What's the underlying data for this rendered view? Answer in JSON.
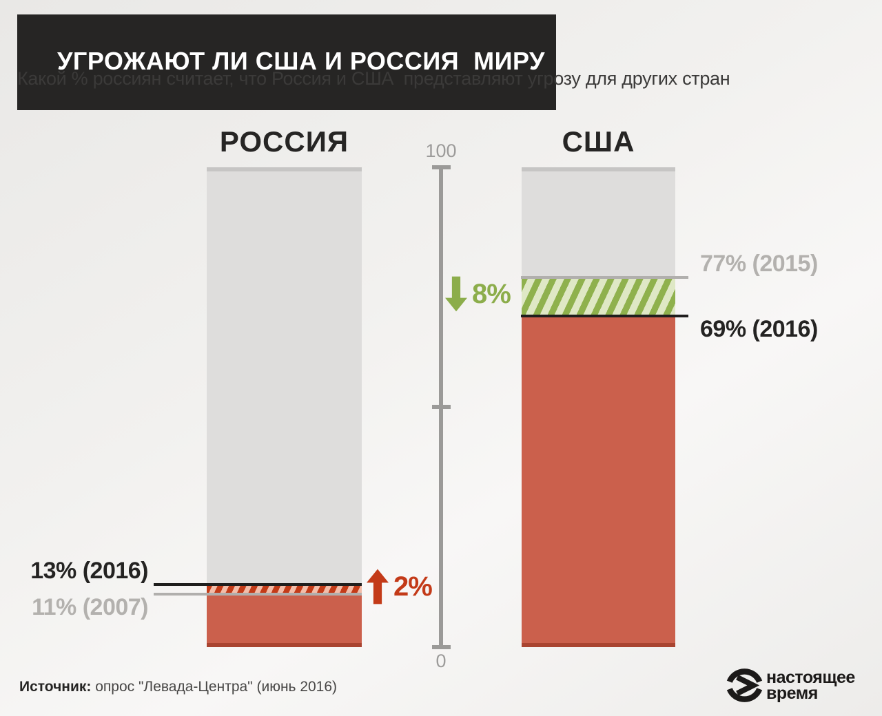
{
  "header": {
    "title": "УГРОЖАЮТ ЛИ США И РОССИЯ  МИРУ",
    "subtitle": "Какой % россиян считает, что Россия и США  представляют угрозу для других стран"
  },
  "chart_data": {
    "type": "bar",
    "title": "УГРОЖАЮТ ЛИ США И РОССИЯ  МИРУ",
    "subtitle": "Какой % россиян считает, что Россия и США представляют угрозу для других стран",
    "unit": "%",
    "axis": {
      "min": 0,
      "max": 100,
      "ticks": [
        100,
        50,
        0
      ],
      "top_label": "100",
      "bottom_label": "0"
    },
    "columns": [
      {
        "id": "russia",
        "label": "РОССИЯ",
        "value_new": 13,
        "year_new": 2016,
        "value_old": 11,
        "year_old": 2007,
        "new_label": "13% (2016)",
        "old_label": "11% (2007)",
        "change_value": 2,
        "change_label": "2%",
        "change_direction": "up",
        "change_color": "#c33a18"
      },
      {
        "id": "usa",
        "label": "США",
        "value_new": 69,
        "year_new": 2016,
        "value_old": 77,
        "year_old": 2015,
        "new_label": "69% (2016)",
        "old_label": "77% (2015)",
        "change_value": 8,
        "change_label": "8%",
        "change_direction": "down",
        "change_color": "#8cad4b"
      }
    ]
  },
  "footer": {
    "source_label": "Источник:",
    "source_text": " опрос \"Левада-Центра\" (июнь 2016)",
    "logo_line1": "настоящее",
    "logo_line2": "время"
  },
  "icons": {
    "russia_change": "arrow-up-icon",
    "usa_change": "arrow-down-icon",
    "logo": "current-time-play-globe-icon"
  },
  "colors": {
    "title_box": "#262524",
    "bar_gray": "#dedddc",
    "bar_gray_cap": "#c6c5c4",
    "bar_red": "#cb604c",
    "bar_red_cap": "#a94430",
    "hatch_red_bg": "#f3bda9",
    "hatch_red_stripe": "#c33b18",
    "hatch_green_bg": "#dfe8c5",
    "hatch_green_stripe": "#8fb14d",
    "label_black": "#242322",
    "label_gray": "#b3b1ae",
    "accent_red": "#c33a18",
    "accent_green": "#8cad4b",
    "axis_gray": "#9b9a98"
  }
}
